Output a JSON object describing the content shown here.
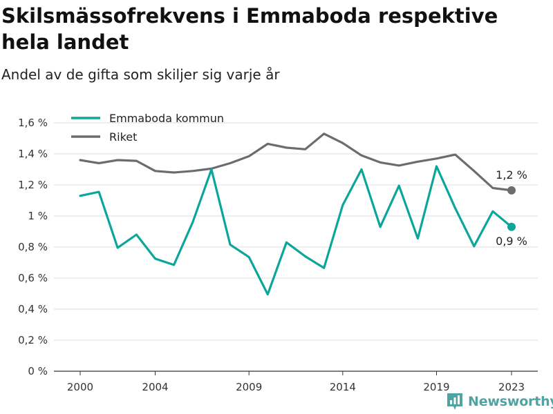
{
  "title": "Skilsmässofrekvens i Emmaboda respektive hela landet",
  "subtitle": "Andel av de gifta som skiljer sig varje år",
  "brand": "Newsworthy",
  "chart_data": {
    "type": "line",
    "title": "Skilsmässofrekvens i Emmaboda respektive hela landet",
    "subtitle": "Andel av de gifta som skiljer sig varje år",
    "x": [
      2000,
      2001,
      2002,
      2003,
      2004,
      2005,
      2006,
      2007,
      2008,
      2009,
      2010,
      2011,
      2012,
      2013,
      2014,
      2015,
      2016,
      2017,
      2018,
      2019,
      2020,
      2021,
      2022,
      2023
    ],
    "x_ticks": [
      2000,
      2004,
      2009,
      2014,
      2019,
      2023
    ],
    "x_tick_labels": [
      "2000",
      "2004",
      "2009",
      "2014",
      "2019",
      "2023"
    ],
    "ylim": [
      0,
      1.6
    ],
    "y_ticks": [
      0,
      0.2,
      0.4,
      0.6,
      0.8,
      1.0,
      1.2,
      1.4,
      1.6
    ],
    "y_tick_labels": [
      "0 %",
      "0,2 %",
      "0,4 %",
      "0,6 %",
      "0,8 %",
      "1 %",
      "1,2 %",
      "1,4 %",
      "1,6 %"
    ],
    "grid": "horizontal",
    "legend_position": "top-left",
    "series": [
      {
        "name": "Emmaboda kommun",
        "color": "#0aa69a",
        "values": [
          1.13,
          1.155,
          0.795,
          0.88,
          0.725,
          0.685,
          0.96,
          1.3,
          0.815,
          0.735,
          0.495,
          0.83,
          0.74,
          0.665,
          1.07,
          1.3,
          0.93,
          1.195,
          0.855,
          1.32,
          1.05,
          0.805,
          1.03,
          0.93
        ],
        "end_label": "0,9 %"
      },
      {
        "name": "Riket",
        "color": "#6d6a70",
        "values": [
          1.36,
          1.34,
          1.36,
          1.355,
          1.29,
          1.28,
          1.29,
          1.305,
          1.34,
          1.385,
          1.465,
          1.44,
          1.43,
          1.53,
          1.47,
          1.39,
          1.345,
          1.325,
          1.35,
          1.37,
          1.395,
          1.29,
          1.18,
          1.165
        ],
        "end_label": "1,2 %"
      }
    ]
  }
}
